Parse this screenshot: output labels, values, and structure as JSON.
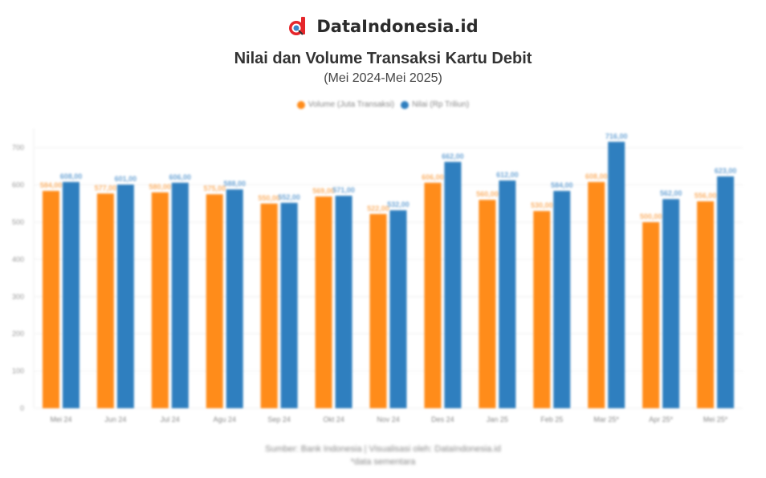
{
  "brand": {
    "name": "DataIndonesia.id",
    "logo_color": "#e5262b"
  },
  "chart_data": {
    "type": "bar",
    "title": "Nilai dan Volume Transaksi Kartu Debit",
    "subtitle": "(Mei 2024-Mei 2025)",
    "xlabel": "",
    "ylabel": "",
    "ylim": [
      0,
      750
    ],
    "yticks": [
      0,
      100,
      200,
      300,
      400,
      500,
      600,
      700
    ],
    "grid": true,
    "legend_position": "top-center",
    "categories": [
      "Mei 24",
      "Jun 24",
      "Jul 24",
      "Agu 24",
      "Sep 24",
      "Okt 24",
      "Nov 24",
      "Des 24",
      "Jan 25",
      "Feb 25",
      "Mar 25*",
      "Apr 25*",
      "Mei 25*"
    ],
    "series": [
      {
        "name": "Volume (Juta Transaksi)",
        "color": "#ff8c1a",
        "values": [
          584,
          577,
          580,
          575,
          550,
          569,
          522,
          606,
          560,
          530,
          608,
          500,
          556
        ]
      },
      {
        "name": "Nilai (Rp Triliun)",
        "color": "#2f7fbf",
        "values": [
          608,
          601,
          606,
          588,
          552,
          571,
          532,
          662,
          612,
          584,
          716,
          562,
          623
        ]
      }
    ]
  },
  "footer": {
    "source": "Sumber: Bank Indonesia | Visualisasi oleh: DataIndonesia.id",
    "note": "*data sementara"
  }
}
